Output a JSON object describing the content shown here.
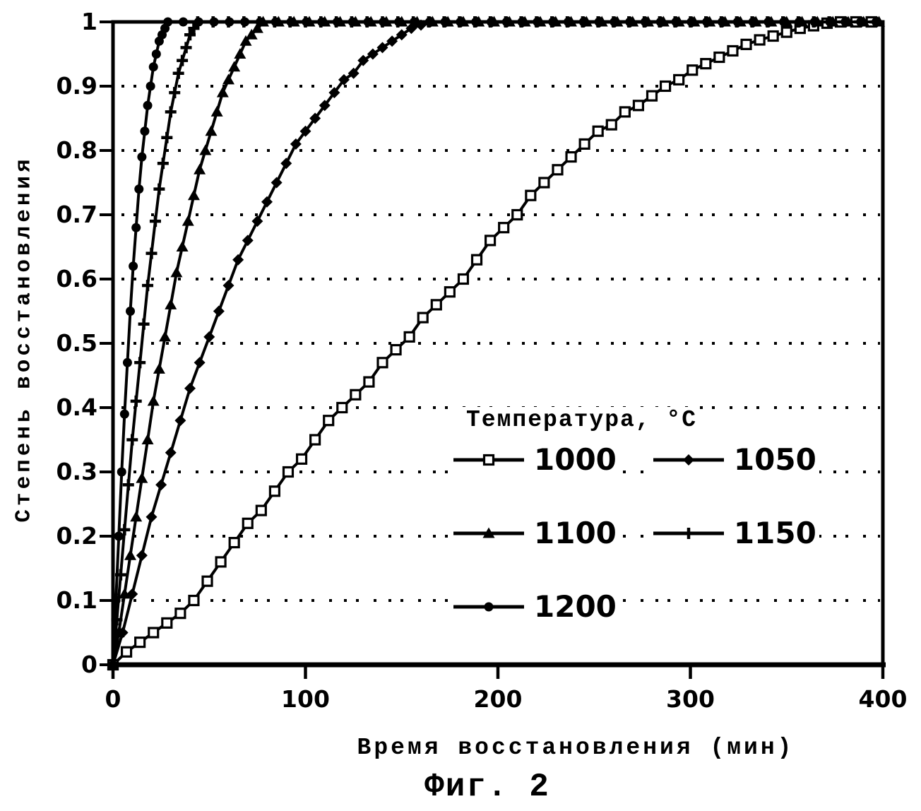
{
  "figure": {
    "caption": "Фиг. 2"
  },
  "chart_data": {
    "type": "line",
    "title": "",
    "xlabel": "Время восстановления (мин)",
    "ylabel": "Степень восстановления",
    "xlim": [
      0,
      400
    ],
    "ylim": [
      0,
      1
    ],
    "x_ticks": [
      "0",
      "100",
      "200",
      "300",
      "400"
    ],
    "y_ticks": [
      "0",
      "0.1",
      "0.2",
      "0.3",
      "0.4",
      "0.5",
      "0.6",
      "0.7",
      "0.8",
      "0.9",
      "1"
    ],
    "grid": "horizontal dotted lines at 0.1–0.9",
    "legend": {
      "title": "Температура, °C",
      "position": "inside right-center, two columns"
    },
    "series": [
      {
        "name": "1000",
        "marker": "open-square",
        "points": [
          [
            0,
            0
          ],
          [
            7,
            0.02
          ],
          [
            14,
            0.035
          ],
          [
            21,
            0.05
          ],
          [
            28,
            0.065
          ],
          [
            35,
            0.08
          ],
          [
            42,
            0.1
          ],
          [
            49,
            0.13
          ],
          [
            56,
            0.16
          ],
          [
            63,
            0.19
          ],
          [
            70,
            0.22
          ],
          [
            77,
            0.24
          ],
          [
            84,
            0.27
          ],
          [
            91,
            0.3
          ],
          [
            98,
            0.32
          ],
          [
            105,
            0.35
          ],
          [
            112,
            0.38
          ],
          [
            119,
            0.4
          ],
          [
            126,
            0.42
          ],
          [
            133,
            0.44
          ],
          [
            140,
            0.47
          ],
          [
            147,
            0.49
          ],
          [
            154,
            0.51
          ],
          [
            161,
            0.54
          ],
          [
            168,
            0.56
          ],
          [
            175,
            0.58
          ],
          [
            182,
            0.6
          ],
          [
            189,
            0.63
          ],
          [
            196,
            0.66
          ],
          [
            203,
            0.68
          ],
          [
            210,
            0.7
          ],
          [
            217,
            0.73
          ],
          [
            224,
            0.75
          ],
          [
            231,
            0.77
          ],
          [
            238,
            0.79
          ],
          [
            245,
            0.81
          ],
          [
            252,
            0.83
          ],
          [
            259,
            0.84
          ],
          [
            266,
            0.86
          ],
          [
            273,
            0.87
          ],
          [
            280,
            0.885
          ],
          [
            287,
            0.9
          ],
          [
            294,
            0.91
          ],
          [
            301,
            0.925
          ],
          [
            308,
            0.935
          ],
          [
            315,
            0.945
          ],
          [
            322,
            0.955
          ],
          [
            329,
            0.965
          ],
          [
            336,
            0.972
          ],
          [
            343,
            0.978
          ],
          [
            350,
            0.984
          ],
          [
            357,
            0.99
          ],
          [
            364,
            0.994
          ],
          [
            371,
            0.998
          ],
          [
            378,
            1
          ]
        ]
      },
      {
        "name": "1050",
        "marker": "diamond",
        "points": [
          [
            0,
            0
          ],
          [
            5,
            0.05
          ],
          [
            10,
            0.11
          ],
          [
            15,
            0.17
          ],
          [
            20,
            0.23
          ],
          [
            25,
            0.28
          ],
          [
            30,
            0.33
          ],
          [
            35,
            0.38
          ],
          [
            40,
            0.43
          ],
          [
            45,
            0.47
          ],
          [
            50,
            0.51
          ],
          [
            55,
            0.55
          ],
          [
            60,
            0.59
          ],
          [
            65,
            0.63
          ],
          [
            70,
            0.66
          ],
          [
            75,
            0.69
          ],
          [
            80,
            0.72
          ],
          [
            85,
            0.75
          ],
          [
            90,
            0.78
          ],
          [
            95,
            0.81
          ],
          [
            100,
            0.83
          ],
          [
            105,
            0.85
          ],
          [
            110,
            0.87
          ],
          [
            115,
            0.89
          ],
          [
            120,
            0.91
          ],
          [
            125,
            0.92
          ],
          [
            130,
            0.94
          ],
          [
            135,
            0.95
          ],
          [
            140,
            0.96
          ],
          [
            145,
            0.97
          ],
          [
            150,
            0.98
          ],
          [
            155,
            0.99
          ],
          [
            160,
            0.995
          ],
          [
            165,
            1
          ]
        ]
      },
      {
        "name": "1100",
        "marker": "triangle",
        "points": [
          [
            0,
            0
          ],
          [
            3,
            0.05
          ],
          [
            6,
            0.11
          ],
          [
            9,
            0.17
          ],
          [
            12,
            0.23
          ],
          [
            15,
            0.29
          ],
          [
            18,
            0.35
          ],
          [
            21,
            0.41
          ],
          [
            24,
            0.46
          ],
          [
            27,
            0.51
          ],
          [
            30,
            0.56
          ],
          [
            33,
            0.61
          ],
          [
            36,
            0.65
          ],
          [
            39,
            0.69
          ],
          [
            42,
            0.73
          ],
          [
            45,
            0.77
          ],
          [
            48,
            0.8
          ],
          [
            51,
            0.83
          ],
          [
            54,
            0.86
          ],
          [
            57,
            0.89
          ],
          [
            60,
            0.91
          ],
          [
            63,
            0.93
          ],
          [
            66,
            0.95
          ],
          [
            69,
            0.97
          ],
          [
            72,
            0.98
          ],
          [
            75,
            0.99
          ],
          [
            78,
            1
          ]
        ]
      },
      {
        "name": "1150",
        "marker": "plus",
        "points": [
          [
            0,
            0
          ],
          [
            2,
            0.07
          ],
          [
            4,
            0.14
          ],
          [
            6,
            0.21
          ],
          [
            8,
            0.28
          ],
          [
            10,
            0.35
          ],
          [
            12,
            0.41
          ],
          [
            14,
            0.47
          ],
          [
            16,
            0.53
          ],
          [
            18,
            0.59
          ],
          [
            20,
            0.64
          ],
          [
            22,
            0.69
          ],
          [
            24,
            0.74
          ],
          [
            26,
            0.78
          ],
          [
            28,
            0.82
          ],
          [
            30,
            0.86
          ],
          [
            32,
            0.89
          ],
          [
            34,
            0.92
          ],
          [
            36,
            0.94
          ],
          [
            38,
            0.96
          ],
          [
            40,
            0.98
          ],
          [
            42,
            0.99
          ],
          [
            44,
            1
          ]
        ]
      },
      {
        "name": "1200",
        "marker": "circle",
        "points": [
          [
            0,
            0
          ],
          [
            1.5,
            0.1
          ],
          [
            3,
            0.2
          ],
          [
            4.5,
            0.3
          ],
          [
            6,
            0.39
          ],
          [
            7.5,
            0.47
          ],
          [
            9,
            0.55
          ],
          [
            10.5,
            0.62
          ],
          [
            12,
            0.68
          ],
          [
            13.5,
            0.74
          ],
          [
            15,
            0.79
          ],
          [
            16.5,
            0.83
          ],
          [
            18,
            0.87
          ],
          [
            19.5,
            0.9
          ],
          [
            21,
            0.93
          ],
          [
            22.5,
            0.95
          ],
          [
            24,
            0.97
          ],
          [
            25.5,
            0.98
          ],
          [
            27,
            0.99
          ],
          [
            28.5,
            1
          ]
        ]
      }
    ]
  }
}
